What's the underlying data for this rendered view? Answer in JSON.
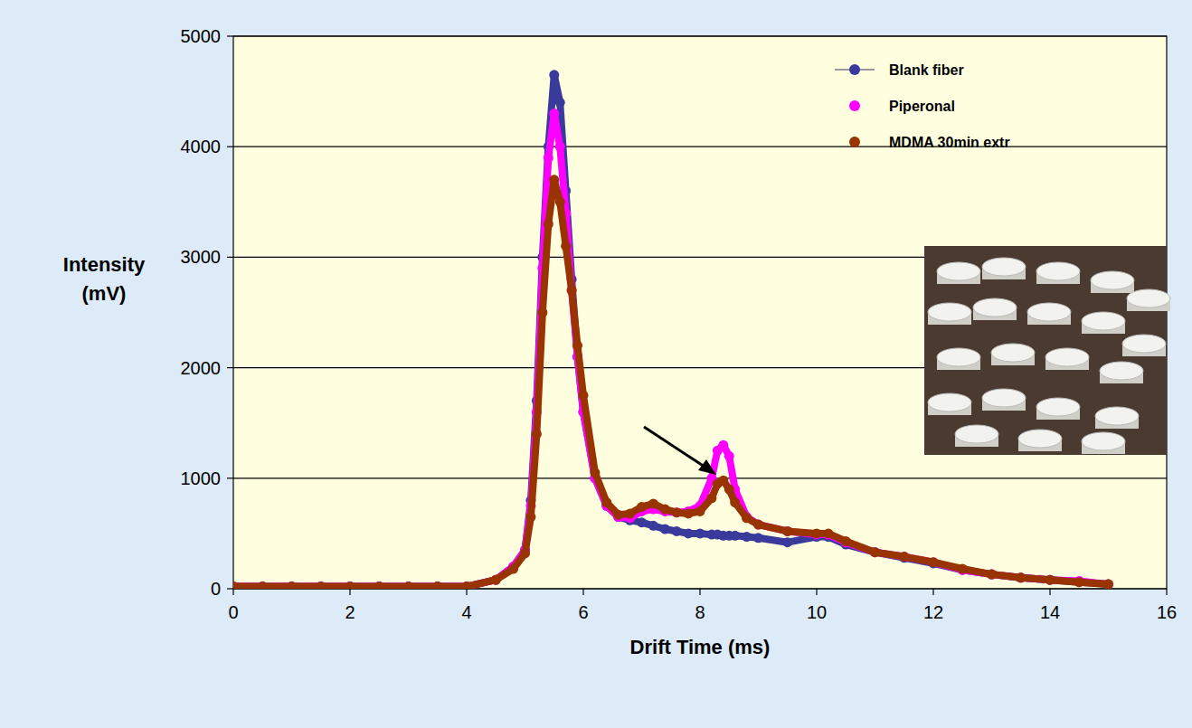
{
  "chart_data": {
    "type": "line",
    "x_label": "Drift Time (ms)",
    "y_label": "Intensity (mV)",
    "x": [
      0,
      0.5,
      1,
      1.5,
      2,
      2.5,
      3,
      3.5,
      4,
      4.5,
      4.8,
      5.0,
      5.1,
      5.2,
      5.3,
      5.4,
      5.5,
      5.6,
      5.7,
      5.8,
      5.9,
      6.0,
      6.2,
      6.4,
      6.6,
      6.8,
      7.0,
      7.2,
      7.4,
      7.6,
      7.8,
      8.0,
      8.2,
      8.3,
      8.4,
      8.5,
      8.6,
      8.8,
      9.0,
      9.5,
      10.0,
      10.2,
      10.5,
      11,
      11.5,
      12,
      12.5,
      13,
      13.5,
      14,
      14.5,
      15
    ],
    "xlim": [
      0,
      16
    ],
    "xticks": [
      0,
      2,
      4,
      6,
      8,
      10,
      12,
      14,
      16
    ],
    "ylim": [
      0,
      5000
    ],
    "yticks": [
      0,
      1000,
      2000,
      3000,
      4000,
      5000
    ],
    "grid": true,
    "legend": "top-right",
    "series": [
      {
        "name": "Blank fiber",
        "color": "#3a3a9c",
        "marker": "circle",
        "line_style": "solid",
        "values": [
          20,
          20,
          20,
          20,
          20,
          20,
          20,
          20,
          20,
          80,
          200,
          350,
          800,
          1700,
          3000,
          4000,
          4650,
          4400,
          3600,
          2800,
          2100,
          1600,
          1000,
          750,
          650,
          620,
          600,
          570,
          540,
          520,
          500,
          500,
          490,
          490,
          480,
          480,
          480,
          470,
          460,
          420,
          470,
          470,
          400,
          330,
          280,
          230,
          170,
          130,
          100,
          80,
          60,
          40
        ]
      },
      {
        "name": "Piperonal",
        "color": "#ff00ff",
        "marker": "circle",
        "values": [
          20,
          20,
          20,
          20,
          20,
          20,
          20,
          20,
          20,
          80,
          200,
          350,
          750,
          1600,
          2900,
          3900,
          4300,
          4000,
          3400,
          2700,
          2100,
          1600,
          1000,
          750,
          650,
          640,
          700,
          720,
          700,
          690,
          700,
          750,
          1000,
          1250,
          1300,
          1200,
          900,
          650,
          580,
          520,
          490,
          490,
          420,
          330,
          290,
          240,
          170,
          130,
          100,
          80,
          70,
          40
        ]
      },
      {
        "name": "MDMA 30min extr",
        "color": "#993300",
        "marker": "circle",
        "values": [
          20,
          20,
          20,
          20,
          20,
          20,
          20,
          20,
          20,
          80,
          180,
          320,
          650,
          1400,
          2500,
          3300,
          3700,
          3500,
          3100,
          2700,
          2200,
          1750,
          1050,
          780,
          670,
          680,
          740,
          770,
          720,
          690,
          680,
          700,
          820,
          950,
          980,
          900,
          780,
          640,
          580,
          520,
          500,
          500,
          430,
          330,
          290,
          240,
          180,
          130,
          100,
          80,
          60,
          40
        ]
      }
    ]
  }
}
